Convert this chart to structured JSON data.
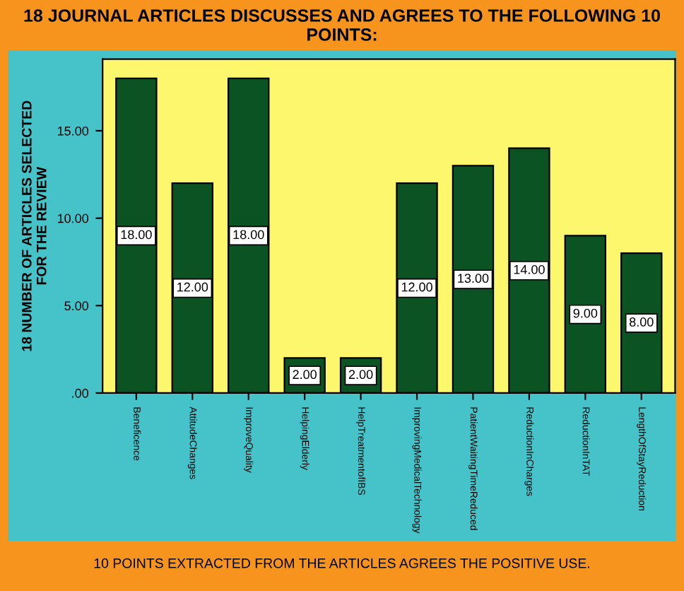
{
  "chart_data": {
    "type": "bar",
    "title": "18 JOURNAL ARTICLES DISCUSSES AND AGREES TO THE FOLLOWING 10 POINTS:",
    "ylabel": "18 NUMBER OF ARTICLES SELECTED FOR THE REVIEW",
    "annotations": [
      "10 POINTS EXTRACTED FROM THE ARTICLES AGREES THE POSITIVE USE."
    ],
    "categories": [
      "Beneficence",
      "AttitudeChanges",
      "ImproveQuality",
      "HelpingElderly",
      "HelpTreatmentofIBS",
      "ImprovingMedicalTechnology",
      "PatientWaitingTimeReduced",
      "ReductionInCharges",
      "ReductionInTAT",
      "LengthOfStayReduction"
    ],
    "values": [
      18,
      12,
      18,
      2,
      2,
      12,
      13,
      14,
      9,
      8
    ],
    "value_labels": [
      "18.00",
      "12.00",
      "18.00",
      "2.00",
      "2.00",
      "12.00",
      "13.00",
      "14.00",
      "9.00",
      "8.00"
    ],
    "color": "#0b5323",
    "ylim": [
      0,
      19.1
    ],
    "yticks": [
      {
        "value": 0,
        "label": ".00"
      },
      {
        "value": 5,
        "label": "5.00"
      },
      {
        "value": 10,
        "label": "10.00"
      },
      {
        "value": 15,
        "label": "15.00"
      }
    ],
    "grid": false,
    "legend": false
  }
}
